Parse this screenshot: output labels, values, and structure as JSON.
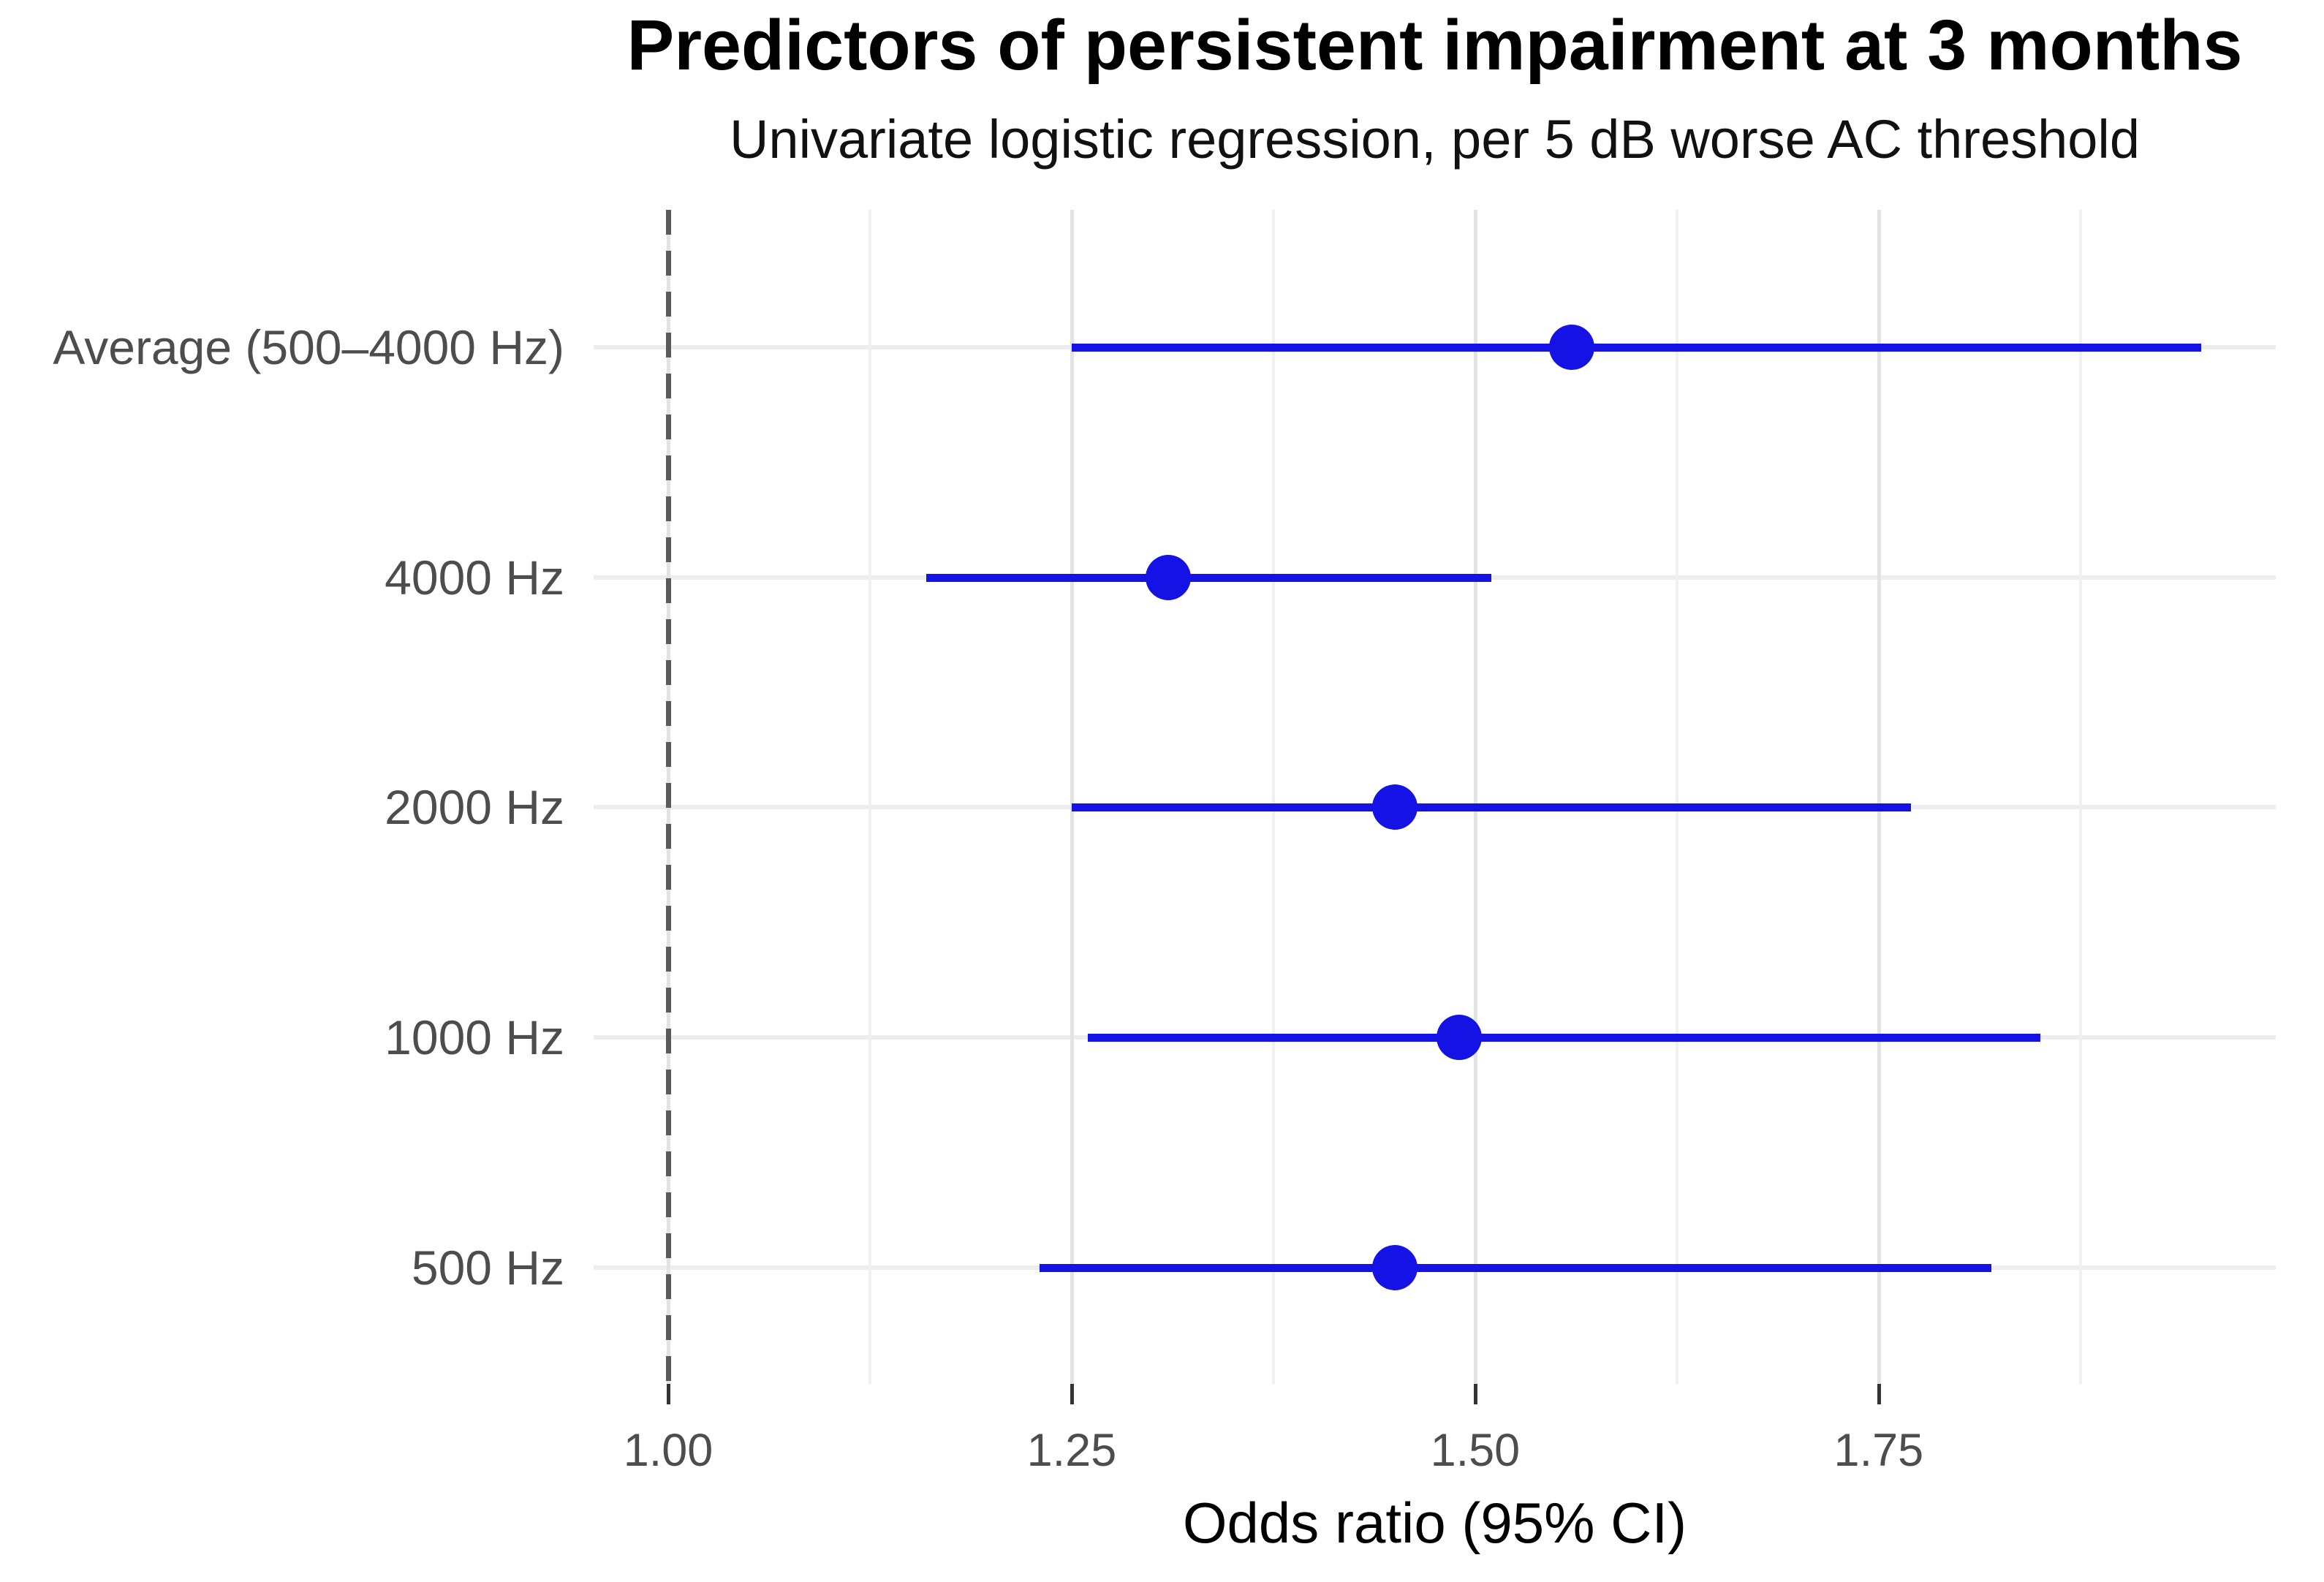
{
  "title": "Predictors of persistent impairment at 3 months",
  "subtitle": "Univariate logistic regression, per 5 dB worse AC threshold",
  "chart_data": {
    "type": "scatter",
    "subtype": "forest-plot",
    "orientation": "horizontal",
    "title": "Predictors of persistent impairment at 3 months",
    "subtitle": "Univariate logistic regression, per 5 dB worse AC threshold",
    "xlabel": "Odds ratio (95% CI)",
    "ylabel": "",
    "categories": [
      "Average (500–4000 Hz)",
      "4000 Hz",
      "2000 Hz",
      "1000 Hz",
      "500 Hz"
    ],
    "points": [
      {
        "label": "Average (500–4000 Hz)",
        "or": 1.56,
        "ci_low": 1.25,
        "ci_high": 1.95
      },
      {
        "label": "4000 Hz",
        "or": 1.31,
        "ci_low": 1.16,
        "ci_high": 1.51
      },
      {
        "label": "2000 Hz",
        "or": 1.45,
        "ci_low": 1.25,
        "ci_high": 1.77
      },
      {
        "label": "1000 Hz",
        "or": 1.49,
        "ci_low": 1.26,
        "ci_high": 1.85
      },
      {
        "label": "500 Hz",
        "or": 1.45,
        "ci_low": 1.23,
        "ci_high": 1.82
      }
    ],
    "x_ticks": [
      {
        "value": 1.0,
        "label": "1.00"
      },
      {
        "value": 1.25,
        "label": "1.25"
      },
      {
        "value": 1.5,
        "label": "1.50"
      },
      {
        "value": 1.75,
        "label": "1.75"
      }
    ],
    "xlim": [
      0.9538,
      1.996
    ],
    "reference_line": 1.0,
    "grid": true,
    "legend_position": "none"
  },
  "colors": {
    "point": "#1512e6",
    "ci": "#1512e6",
    "reference": "#5a5a5a",
    "grid_major": "#e3e3e3",
    "grid_minor": "#f0f0f0",
    "axis_text": "#4d4d4d",
    "title_text": "#000000"
  }
}
